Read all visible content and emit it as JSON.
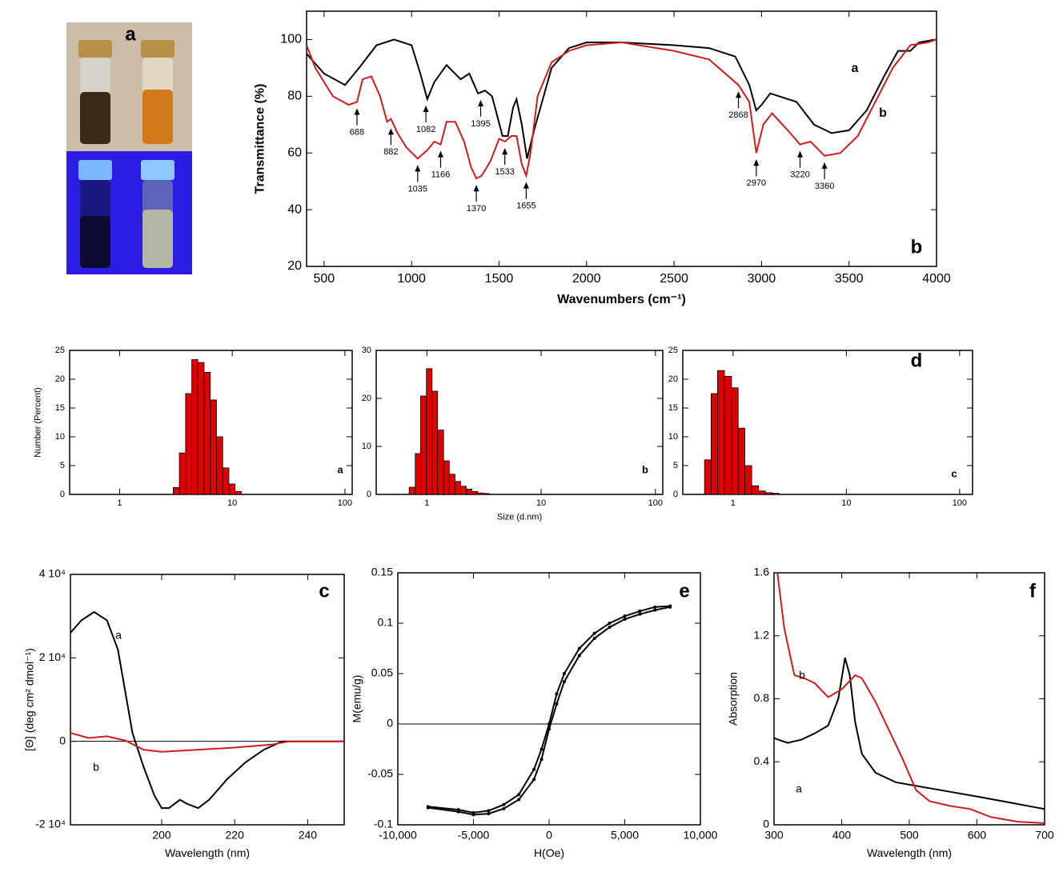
{
  "photo": {
    "label": "a"
  },
  "chart_data": [
    {
      "type": "line",
      "x_label": "Wavenumbers (cm⁻¹)",
      "y_label": "Transmittance (%)",
      "panel_label": "b",
      "xlim": [
        400,
        4000
      ],
      "ylim": [
        20,
        110
      ],
      "xticks": [
        500,
        1000,
        1500,
        2000,
        2500,
        3000,
        3500,
        4000
      ],
      "yticks": [
        20,
        40,
        60,
        80,
        100
      ],
      "series": [
        {
          "name": "a",
          "color": "#000000",
          "x": [
            400,
            500,
            620,
            700,
            800,
            900,
            1000,
            1050,
            1090,
            1130,
            1200,
            1280,
            1330,
            1380,
            1420,
            1460,
            1520,
            1550,
            1580,
            1600,
            1630,
            1660,
            1700,
            1800,
            1900,
            2000,
            2200,
            2500,
            2700,
            2850,
            2930,
            2970,
            3000,
            3050,
            3100,
            3200,
            3300,
            3400,
            3500,
            3600,
            3700,
            3780,
            3850,
            3900,
            4000
          ],
          "values": [
            95,
            88,
            84,
            90,
            98,
            100,
            98,
            88,
            79,
            85,
            91,
            86,
            88,
            81,
            82,
            80,
            66,
            66,
            76,
            79,
            70,
            58,
            68,
            90,
            97,
            99,
            99,
            98,
            97,
            94,
            84,
            75,
            77,
            81,
            80,
            78,
            70,
            67,
            68,
            75,
            87,
            96,
            96,
            99,
            100
          ]
        },
        {
          "name": "b",
          "color": "#d01c1c",
          "x": [
            400,
            450,
            550,
            640,
            688,
            720,
            770,
            820,
            860,
            882,
            920,
            970,
            1035,
            1090,
            1130,
            1166,
            1200,
            1250,
            1300,
            1340,
            1370,
            1400,
            1450,
            1500,
            1533,
            1570,
            1600,
            1630,
            1655,
            1680,
            1720,
            1800,
            1900,
            2000,
            2200,
            2500,
            2700,
            2868,
            2930,
            2970,
            3010,
            3060,
            3150,
            3220,
            3280,
            3360,
            3450,
            3550,
            3650,
            3750,
            3850,
            3950,
            4000
          ],
          "values": [
            98,
            90,
            80,
            77,
            78,
            86,
            87,
            80,
            71,
            72,
            67,
            62,
            58,
            61,
            64,
            63,
            71,
            71,
            64,
            55,
            51,
            52,
            57,
            65,
            64,
            66,
            66,
            56,
            52,
            60,
            80,
            92,
            96,
            98,
            99,
            96,
            93,
            84,
            78,
            60,
            70,
            74,
            68,
            63,
            64,
            59,
            60,
            66,
            78,
            90,
            98,
            99,
            100
          ]
        }
      ],
      "annotations": [
        {
          "text": "688",
          "x": 688,
          "y": 76
        },
        {
          "text": "882",
          "x": 882,
          "y": 69
        },
        {
          "text": "1035",
          "x": 1035,
          "y": 56
        },
        {
          "text": "1082",
          "x": 1082,
          "y": 77
        },
        {
          "text": "1166",
          "x": 1166,
          "y": 61
        },
        {
          "text": "1370",
          "x": 1370,
          "y": 49
        },
        {
          "text": "1395",
          "x": 1395,
          "y": 79
        },
        {
          "text": "1533",
          "x": 1533,
          "y": 62
        },
        {
          "text": "1655",
          "x": 1655,
          "y": 50
        },
        {
          "text": "2868",
          "x": 2868,
          "y": 82
        },
        {
          "text": "2970",
          "x": 2970,
          "y": 58
        },
        {
          "text": "3220",
          "x": 3220,
          "y": 61
        },
        {
          "text": "3360",
          "x": 3360,
          "y": 57
        }
      ]
    },
    {
      "type": "histogram",
      "y_label": "Number (Percent)",
      "label": "a",
      "log_x": true,
      "xlim": [
        0.36,
        116
      ],
      "ylim": [
        0,
        25
      ],
      "xticks": [
        1,
        10,
        100
      ],
      "yticks": [
        0,
        5,
        10,
        15,
        20,
        25
      ],
      "color": "#e00000",
      "bins": [
        2.99,
        3.39,
        3.85,
        4.37,
        4.95,
        5.62,
        6.38,
        7.24,
        8.22,
        9.33,
        10.59,
        12.02
      ],
      "values": [
        1.2,
        7.2,
        17.5,
        23.4,
        22.9,
        21.2,
        16.4,
        10,
        4.6,
        1.8,
        0.5
      ]
    },
    {
      "type": "histogram",
      "x_label": "Size (d.nm)",
      "label": "b",
      "log_x": true,
      "xlim": [
        0.36,
        116
      ],
      "ylim": [
        0,
        30
      ],
      "xticks": [
        1,
        10,
        100
      ],
      "yticks": [
        0,
        10,
        20,
        30
      ],
      "color": "#e00000",
      "bins": [
        0.7,
        0.79,
        0.88,
        0.99,
        1.11,
        1.24,
        1.4,
        1.57,
        1.76,
        1.97,
        2.21,
        2.48,
        2.79,
        3.13,
        3.51
      ],
      "values": [
        1.5,
        8.5,
        20.5,
        26.2,
        21.5,
        13.4,
        7,
        4.2,
        2.7,
        1.7,
        1.1,
        0.6,
        0.3,
        0.2
      ]
    },
    {
      "type": "histogram",
      "label": "c",
      "panel_label": "d",
      "log_x": true,
      "xlim": [
        0.36,
        130
      ],
      "ylim": [
        0,
        25
      ],
      "xticks": [
        1,
        10,
        100
      ],
      "yticks": [
        0,
        5,
        10,
        15,
        20,
        25
      ],
      "color": "#e00000",
      "bins": [
        0.56,
        0.64,
        0.73,
        0.84,
        0.97,
        1.11,
        1.27,
        1.46,
        1.68,
        1.93,
        2.21,
        2.54
      ],
      "values": [
        6,
        17.5,
        21.5,
        20.5,
        18.5,
        11.5,
        5,
        1.5,
        0.6,
        0.3,
        0.2
      ]
    },
    {
      "type": "line",
      "x_label": "Wavelength (nm)",
      "y_label": "[Θ] (deg cm² dmol⁻¹)",
      "panel_label": "c",
      "zero_line": true,
      "xlim": [
        175,
        250
      ],
      "ylim": [
        -20000,
        40000
      ],
      "xticks": [
        200,
        220,
        240
      ],
      "yticks": [
        {
          "value": -20000,
          "label": "-2 10⁴"
        },
        0,
        {
          "value": 20000,
          "label": "2 10⁴"
        },
        {
          "value": 40000,
          "label": "4 10⁴"
        }
      ],
      "series": [
        {
          "name": "a",
          "color": "#000000",
          "x": [
            175,
            178,
            181.5,
            185,
            188,
            190,
            192,
            195,
            198,
            200,
            202,
            205,
            207,
            210,
            213,
            218,
            223,
            228,
            233,
            250
          ],
          "values": [
            26000,
            29000,
            31000,
            29000,
            22000,
            12000,
            2000,
            -6000,
            -13000,
            -16000,
            -16000,
            -14000,
            -15000,
            -16000,
            -14000,
            -9000,
            -5000,
            -2000,
            0,
            0
          ]
        },
        {
          "name": "b",
          "color": "#d01c1c",
          "x": [
            175,
            180,
            185,
            190,
            195,
            200,
            210,
            220,
            230,
            235,
            250
          ],
          "values": [
            2000,
            800,
            1200,
            200,
            -2000,
            -2500,
            -2000,
            -1500,
            -800,
            0,
            0
          ]
        }
      ]
    },
    {
      "type": "line",
      "x_label": "H(Oe)",
      "y_label": "M(emu/g)",
      "panel_label": "e",
      "zero_line": true,
      "markers": true,
      "xlim": [
        -10000,
        10000
      ],
      "ylim": [
        -0.1,
        0.15
      ],
      "xticks": [
        {
          "value": -10000,
          "label": "-10,000"
        },
        {
          "value": -5000,
          "label": "-5,000"
        },
        0,
        {
          "value": 5000,
          "label": "5,000"
        },
        {
          "value": 10000,
          "label": "10,000"
        }
      ],
      "yticks": [
        -0.1,
        -0.05,
        0,
        0.05,
        0.1,
        0.15
      ],
      "x": [
        -8000,
        -6000,
        -5000,
        -4000,
        -3000,
        -2000,
        -1000,
        -500,
        0,
        500,
        1000,
        2000,
        3000,
        4000,
        5000,
        6000,
        7000,
        8000
      ],
      "series": [
        {
          "color": "#000000",
          "values": [
            -0.082,
            -0.085,
            -0.088,
            -0.086,
            -0.08,
            -0.07,
            -0.045,
            -0.025,
            0,
            0.03,
            0.05,
            0.075,
            0.09,
            0.1,
            0.107,
            0.112,
            0.116,
            0.117
          ]
        },
        {
          "color": "#000000",
          "values": [
            -0.083,
            -0.087,
            -0.09,
            -0.089,
            -0.084,
            -0.075,
            -0.055,
            -0.035,
            -0.005,
            0.02,
            0.042,
            0.068,
            0.085,
            0.096,
            0.104,
            0.109,
            0.113,
            0.116
          ]
        }
      ]
    },
    {
      "type": "line",
      "x_label": "Wavelength (nm)",
      "y_label": "Absorption",
      "panel_label": "f",
      "xlim": [
        300,
        700
      ],
      "ylim": [
        0,
        1.6
      ],
      "xticks": [
        300,
        400,
        500,
        600,
        700
      ],
      "yticks": [
        0,
        0.4,
        0.8,
        1.2,
        1.6
      ],
      "series": [
        {
          "name": "a",
          "color": "#000000",
          "x": [
            300,
            320,
            340,
            360,
            380,
            395,
            405,
            412,
            420,
            430,
            450,
            480,
            520,
            560,
            600,
            650,
            700
          ],
          "values": [
            0.55,
            0.52,
            0.54,
            0.58,
            0.63,
            0.8,
            1.06,
            0.95,
            0.65,
            0.45,
            0.33,
            0.27,
            0.24,
            0.21,
            0.18,
            0.14,
            0.1
          ]
        },
        {
          "name": "b",
          "color": "#d01c1c",
          "x": [
            305,
            315,
            330,
            345,
            360,
            380,
            400,
            420,
            430,
            450,
            470,
            490,
            510,
            530,
            560,
            590,
            620,
            660,
            700
          ],
          "values": [
            1.6,
            1.25,
            0.95,
            0.93,
            0.9,
            0.81,
            0.86,
            0.95,
            0.93,
            0.78,
            0.6,
            0.42,
            0.22,
            0.15,
            0.12,
            0.1,
            0.05,
            0.02,
            0.01
          ]
        }
      ]
    }
  ]
}
